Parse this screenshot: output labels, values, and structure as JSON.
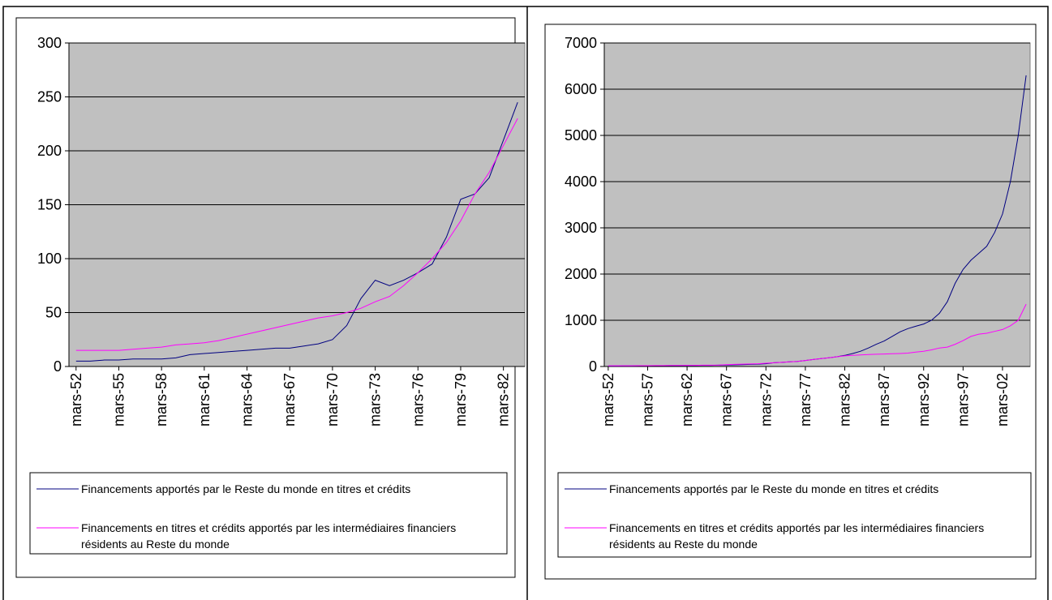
{
  "chart_data": [
    {
      "type": "line",
      "categories": [
        "mars-52",
        null,
        null,
        "mars-55",
        null,
        null,
        "mars-58",
        null,
        null,
        "mars-61",
        null,
        null,
        "mars-64",
        null,
        null,
        "mars-67",
        null,
        null,
        "mars-70",
        null,
        null,
        "mars-73",
        null,
        null,
        "mars-76",
        null,
        null,
        "mars-79",
        null,
        null,
        "mars-82",
        null
      ],
      "ylim": [
        0,
        300
      ],
      "yticks": [
        0,
        50,
        100,
        150,
        200,
        250,
        300
      ],
      "grid": true,
      "series": [
        {
          "name": "Financements apportés par le Reste du monde en titres et crédits",
          "color": "#000080",
          "values": [
            5,
            5,
            6,
            6,
            7,
            7,
            7,
            8,
            11,
            12,
            13,
            14,
            15,
            16,
            17,
            17,
            19,
            21,
            25,
            38,
            63,
            80,
            75,
            80,
            87,
            95,
            120,
            155,
            160,
            175,
            210,
            245
          ]
        },
        {
          "name": "Financements en titres et crédits apportés par les intermédiaires financiers résidents au Reste du monde",
          "color": "#ff00ff",
          "values": [
            15,
            15,
            15,
            15,
            16,
            17,
            18,
            20,
            21,
            22,
            24,
            27,
            30,
            33,
            36,
            39,
            42,
            45,
            47,
            50,
            54,
            60,
            65,
            75,
            87,
            100,
            115,
            135,
            160,
            180,
            205,
            230
          ]
        }
      ]
    },
    {
      "type": "line",
      "categories": [
        "mars-52",
        null,
        null,
        null,
        null,
        "mars-57",
        null,
        null,
        null,
        null,
        "mars-62",
        null,
        null,
        null,
        null,
        "mars-67",
        null,
        null,
        null,
        null,
        "mars-72",
        null,
        null,
        null,
        null,
        "mars-77",
        null,
        null,
        null,
        null,
        "mars-82",
        null,
        null,
        null,
        null,
        "mars-87",
        null,
        null,
        null,
        null,
        "mars-92",
        null,
        null,
        null,
        null,
        "mars-97",
        null,
        null,
        null,
        null,
        "mars-02",
        null,
        null,
        null
      ],
      "ylim": [
        0,
        7000
      ],
      "yticks": [
        0,
        1000,
        2000,
        3000,
        4000,
        5000,
        6000,
        7000
      ],
      "grid": true,
      "series": [
        {
          "name": "Financements apportés par le Reste du monde en titres et crédits",
          "color": "#000080",
          "values": [
            10,
            10,
            12,
            12,
            15,
            15,
            18,
            18,
            20,
            20,
            22,
            22,
            25,
            25,
            28,
            30,
            35,
            40,
            45,
            50,
            60,
            80,
            90,
            100,
            110,
            130,
            150,
            170,
            190,
            210,
            240,
            280,
            330,
            400,
            480,
            550,
            650,
            750,
            820,
            870,
            920,
            1000,
            1150,
            1400,
            1800,
            2100,
            2300,
            2450,
            2600,
            2900,
            3300,
            4000,
            5000,
            6300
          ]
        },
        {
          "name": "Financements en titres et crédits apportés par les intermédiaires financiers résidents au Reste du monde",
          "color": "#ff00ff",
          "values": [
            15,
            15,
            16,
            16,
            18,
            18,
            20,
            20,
            22,
            22,
            25,
            25,
            28,
            28,
            30,
            40,
            45,
            50,
            55,
            60,
            70,
            80,
            90,
            100,
            110,
            130,
            150,
            170,
            190,
            210,
            230,
            240,
            250,
            260,
            265,
            270,
            275,
            280,
            290,
            310,
            330,
            360,
            400,
            420,
            480,
            560,
            650,
            700,
            720,
            760,
            800,
            880,
            1000,
            1350
          ]
        }
      ]
    }
  ]
}
